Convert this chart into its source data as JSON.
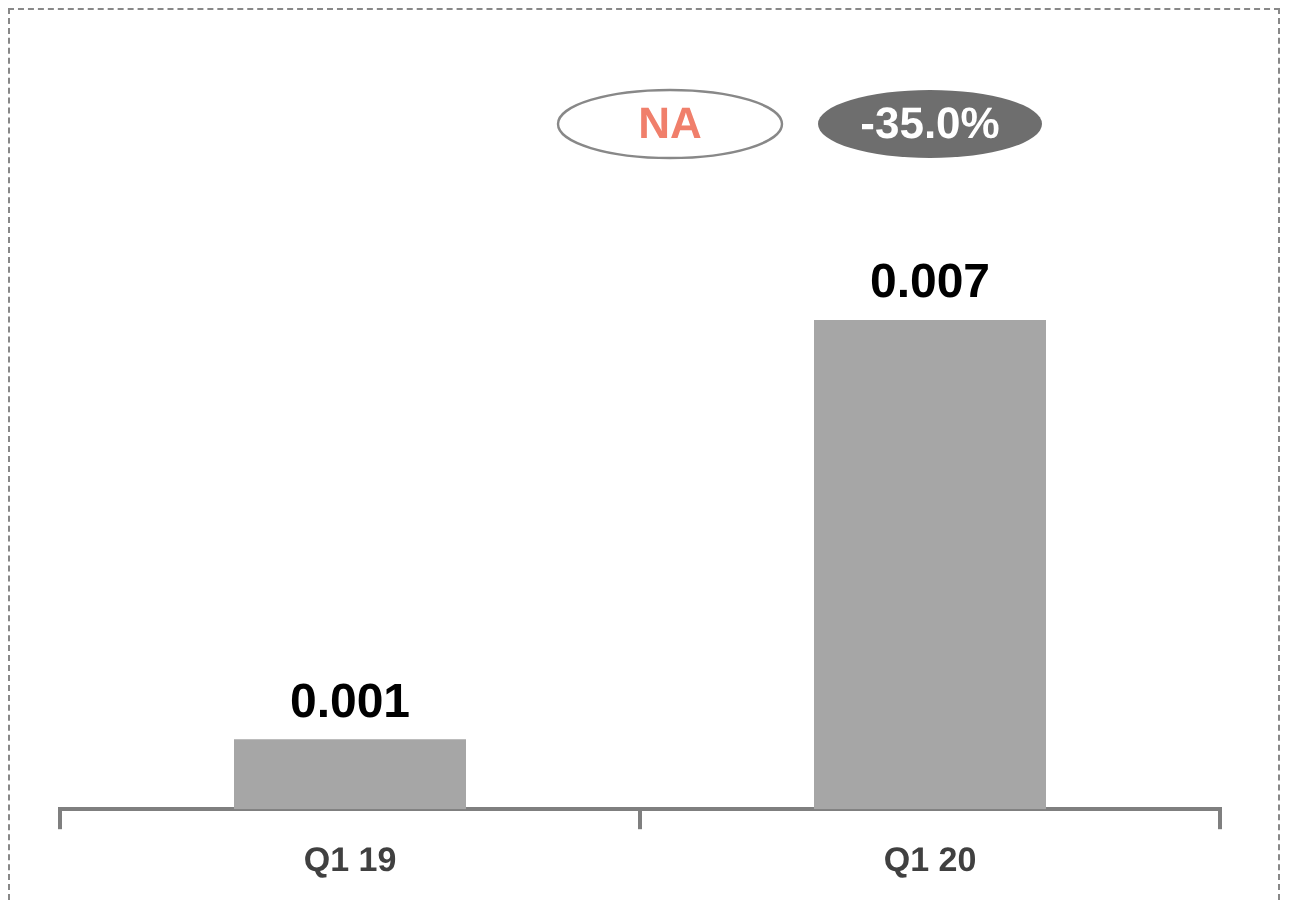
{
  "chart_data": {
    "type": "bar",
    "categories": [
      "Q1 19",
      "Q1 20"
    ],
    "values": [
      0.001,
      0.007
    ],
    "color": "#a6a6a6",
    "data_labels": true,
    "annotations": [
      "NA",
      "-35.0%"
    ],
    "grid": false,
    "legend": false
  }
}
